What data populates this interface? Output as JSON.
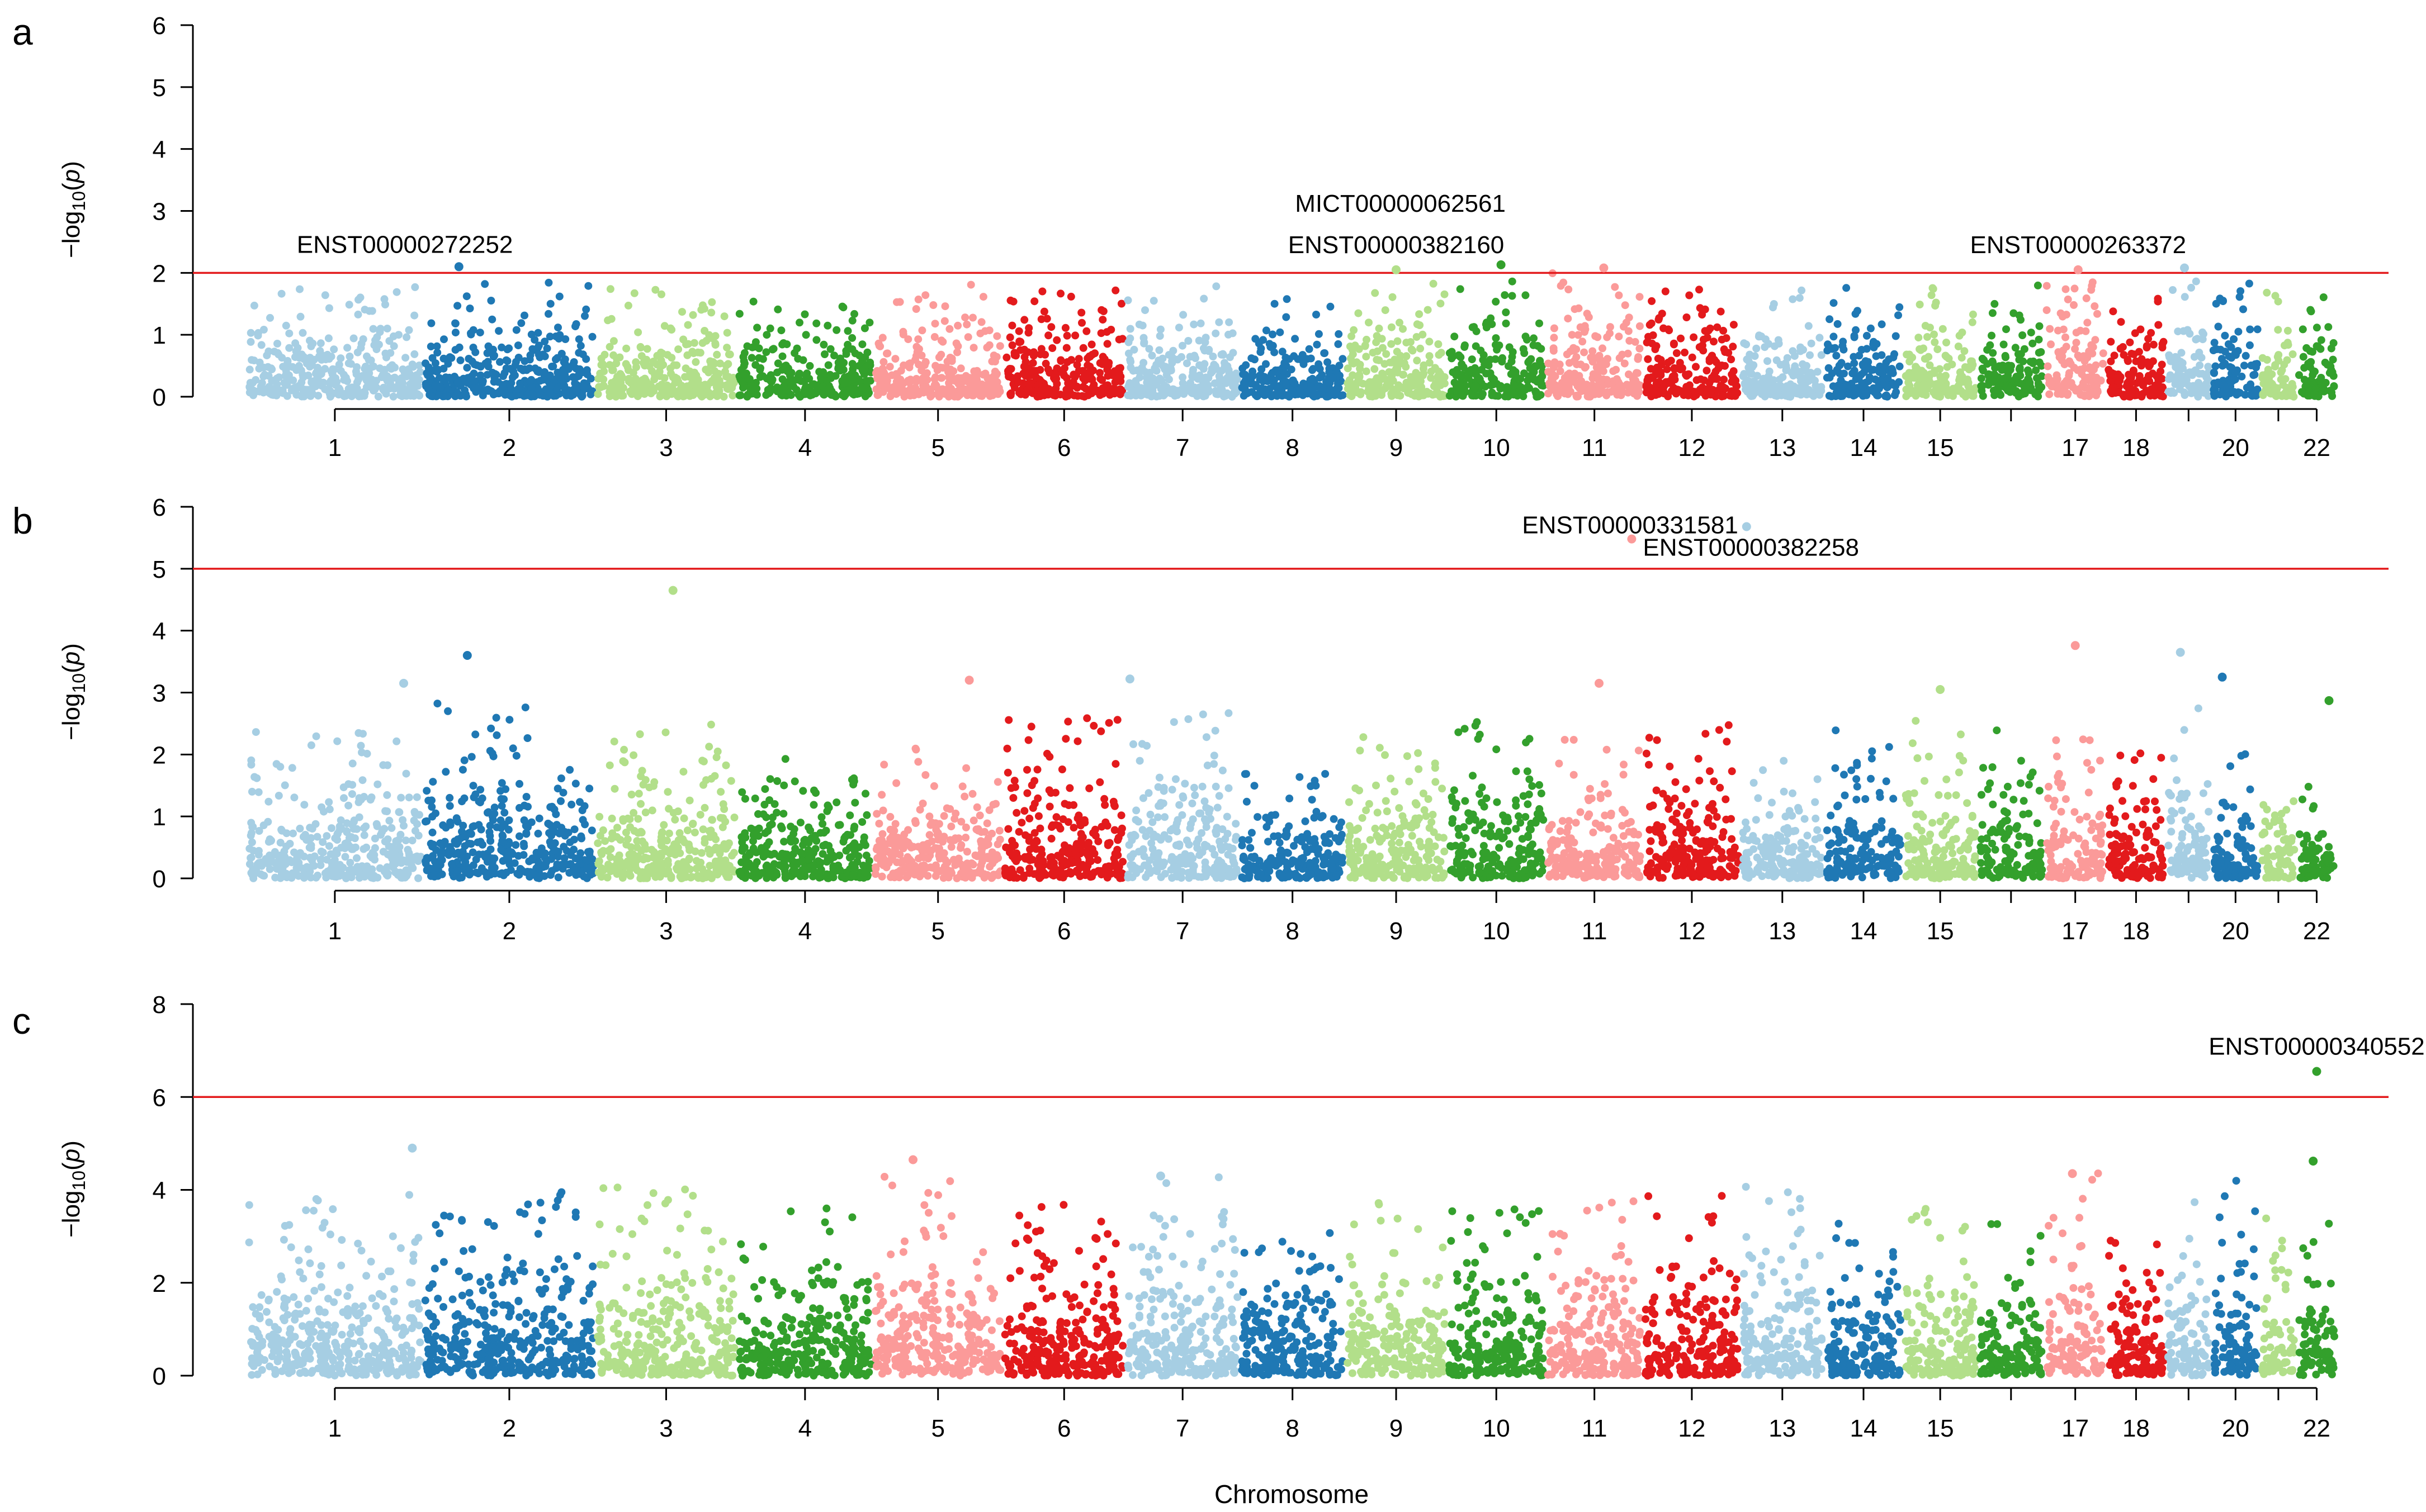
{
  "figure": {
    "xlabel": "Chromosome",
    "ylabel_prefix": "−log",
    "ylabel_sub": "10",
    "ylabel_var": "p"
  },
  "chromosomes": [
    {
      "id": "1",
      "size": 249,
      "label": "1"
    },
    {
      "id": "2",
      "size": 243,
      "label": "2"
    },
    {
      "id": "3",
      "size": 198,
      "label": "3"
    },
    {
      "id": "4",
      "size": 191,
      "label": "4"
    },
    {
      "id": "5",
      "size": 181,
      "label": "5"
    },
    {
      "id": "6",
      "size": 171,
      "label": "6"
    },
    {
      "id": "7",
      "size": 159,
      "label": "7"
    },
    {
      "id": "8",
      "size": 146,
      "label": "8"
    },
    {
      "id": "9",
      "size": 141,
      "label": "9"
    },
    {
      "id": "10",
      "size": 136,
      "label": "10"
    },
    {
      "id": "11",
      "size": 135,
      "label": "11"
    },
    {
      "id": "12",
      "size": 134,
      "label": "12"
    },
    {
      "id": "13",
      "size": 115,
      "label": "13"
    },
    {
      "id": "14",
      "size": 107,
      "label": "14"
    },
    {
      "id": "15",
      "size": 102,
      "label": "15"
    },
    {
      "id": "16",
      "size": 90,
      "label": ""
    },
    {
      "id": "17",
      "size": 83,
      "label": "17"
    },
    {
      "id": "18",
      "size": 80,
      "label": "18"
    },
    {
      "id": "19",
      "size": 59,
      "label": ""
    },
    {
      "id": "20",
      "size": 64,
      "label": "20"
    },
    {
      "id": "21",
      "size": 47,
      "label": ""
    },
    {
      "id": "22",
      "size": 51,
      "label": "22"
    }
  ],
  "colors": {
    "odd_light": "#a6cee3",
    "odd_dark": "#1f78b4",
    "pal": [
      "#a6cee3",
      "#1f78b4",
      "#b2df8a",
      "#33a02c",
      "#fb9a99",
      "#e31a1c"
    ],
    "threshold": "#e31a1c",
    "axis": "#000000"
  },
  "chart_data": [
    {
      "type": "scatter",
      "panel": "a",
      "title": "",
      "xlabel": "Chromosome",
      "ylabel": "−log10(p)",
      "ylim": [
        0,
        6
      ],
      "yticks": [
        "0",
        "1",
        "2",
        "3",
        "4",
        "5",
        "6"
      ],
      "threshold": 2,
      "density_max": [
        1.8,
        1.85,
        1.75,
        1.6,
        1.85,
        1.75,
        1.8,
        1.6,
        1.9,
        1.9,
        2.0,
        1.8,
        1.75,
        1.9,
        1.8,
        1.8,
        1.9,
        1.8,
        2.0,
        1.85,
        1.7,
        1.7
      ],
      "highlights": [
        {
          "chrom": 2,
          "pos": 0.2,
          "y": 2.1,
          "label": "ENST00000272252",
          "label_anchor": "left-above"
        },
        {
          "chrom": 10,
          "pos": 0.55,
          "y": 2.13,
          "label": "MICT00000062561",
          "label_anchor": "above-high"
        },
        {
          "chrom": 9,
          "pos": 0.5,
          "y": 2.05,
          "label": "ENST00000382160",
          "label_anchor": "above"
        },
        {
          "chrom": 17,
          "pos": 0.55,
          "y": 2.05,
          "label": "ENST00000263372",
          "label_anchor": "above"
        },
        {
          "chrom": 11,
          "pos": 0.6,
          "y": 2.08,
          "label": "",
          "label_anchor": ""
        },
        {
          "chrom": 19,
          "pos": 0.4,
          "y": 2.08,
          "label": "",
          "label_anchor": ""
        }
      ]
    },
    {
      "type": "scatter",
      "panel": "b",
      "title": "",
      "xlabel": "Chromosome",
      "ylabel": "−log10(p)",
      "ylim": [
        0,
        6
      ],
      "yticks": [
        "0",
        "1",
        "2",
        "3",
        "4",
        "5",
        "6"
      ],
      "threshold": 5,
      "density_max": [
        2.4,
        2.9,
        2.5,
        2.0,
        2.2,
        2.6,
        2.7,
        1.7,
        2.3,
        2.6,
        2.4,
        2.5,
        1.9,
        2.4,
        2.6,
        2.6,
        2.6,
        2.1,
        2.8,
        2.2,
        1.8,
        1.6
      ],
      "highlights": [
        {
          "chrom": 13,
          "pos": 0.05,
          "y": 5.68,
          "label": "ENST00000331581",
          "label_anchor": "left"
        },
        {
          "chrom": 11,
          "pos": 0.9,
          "y": 5.48,
          "label": "ENST00000382258",
          "label_anchor": "right-below"
        },
        {
          "chrom": 3,
          "pos": 0.55,
          "y": 4.65,
          "label": "",
          "label_anchor": ""
        },
        {
          "chrom": 17,
          "pos": 0.5,
          "y": 3.76,
          "label": "",
          "label_anchor": ""
        },
        {
          "chrom": 19,
          "pos": 0.3,
          "y": 3.65,
          "label": "",
          "label_anchor": ""
        },
        {
          "chrom": 2,
          "pos": 0.25,
          "y": 3.6,
          "label": "",
          "label_anchor": ""
        },
        {
          "chrom": 20,
          "pos": 0.2,
          "y": 3.25,
          "label": "",
          "label_anchor": ""
        },
        {
          "chrom": 7,
          "pos": 0.02,
          "y": 3.22,
          "label": "",
          "label_anchor": ""
        },
        {
          "chrom": 5,
          "pos": 0.75,
          "y": 3.2,
          "label": "",
          "label_anchor": ""
        },
        {
          "chrom": 1,
          "pos": 0.9,
          "y": 3.15,
          "label": "",
          "label_anchor": ""
        },
        {
          "chrom": 11,
          "pos": 0.55,
          "y": 3.15,
          "label": "",
          "label_anchor": ""
        },
        {
          "chrom": 15,
          "pos": 0.5,
          "y": 3.05,
          "label": "",
          "label_anchor": ""
        },
        {
          "chrom": 22,
          "pos": 0.85,
          "y": 2.87,
          "label": "",
          "label_anchor": ""
        }
      ]
    },
    {
      "type": "scatter",
      "panel": "c",
      "title": "",
      "xlabel": "Chromosome",
      "ylabel": "−log10(p)",
      "ylim": [
        0,
        8
      ],
      "yticks": [
        "0",
        "2",
        "4",
        "6",
        "8"
      ],
      "threshold": 6,
      "density_max": [
        3.9,
        4.0,
        4.1,
        3.7,
        4.4,
        3.9,
        4.3,
        3.8,
        3.9,
        3.6,
        3.8,
        3.9,
        4.1,
        3.3,
        3.7,
        3.5,
        4.4,
        3.2,
        4.0,
        4.2,
        3.4,
        3.7
      ],
      "highlights": [
        {
          "chrom": 22,
          "pos": 0.5,
          "y": 6.55,
          "label": "ENST00000340552",
          "label_anchor": "above"
        },
        {
          "chrom": 1,
          "pos": 0.95,
          "y": 4.9,
          "label": "",
          "label_anchor": ""
        },
        {
          "chrom": 5,
          "pos": 0.3,
          "y": 4.65,
          "label": "",
          "label_anchor": ""
        },
        {
          "chrom": 22,
          "pos": 0.4,
          "y": 4.62,
          "label": "",
          "label_anchor": ""
        },
        {
          "chrom": 17,
          "pos": 0.45,
          "y": 4.35,
          "label": "",
          "label_anchor": ""
        },
        {
          "chrom": 7,
          "pos": 0.3,
          "y": 4.3,
          "label": "",
          "label_anchor": ""
        }
      ]
    }
  ],
  "panels": [
    {
      "letter": "a"
    },
    {
      "letter": "b"
    },
    {
      "letter": "c"
    }
  ]
}
